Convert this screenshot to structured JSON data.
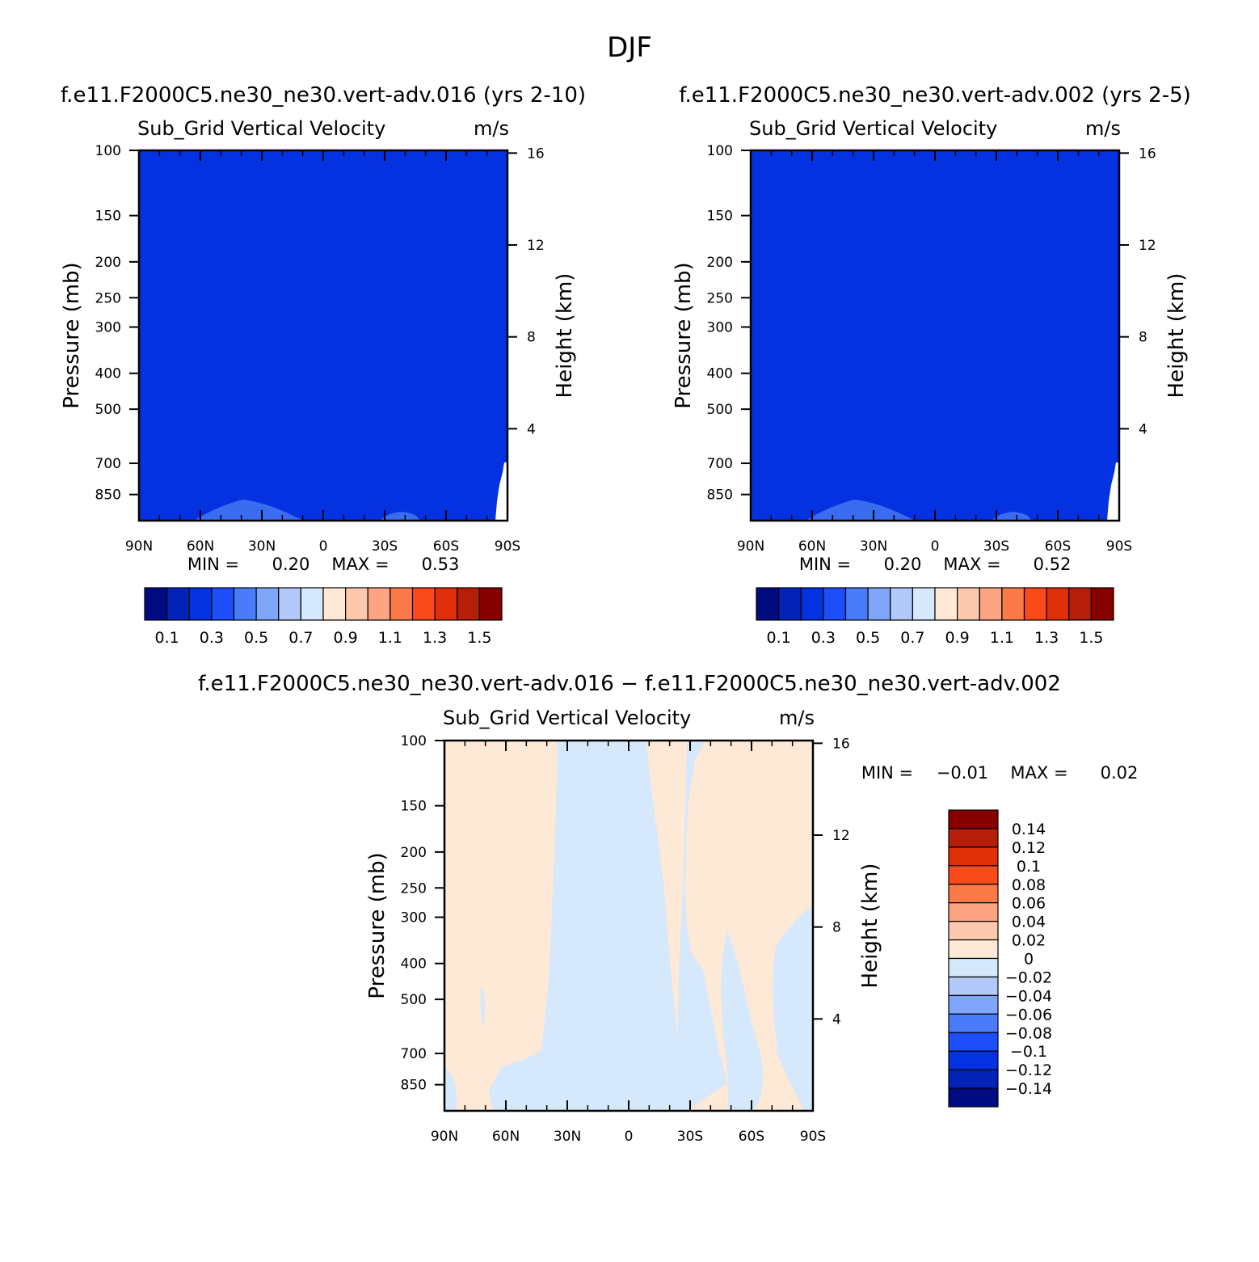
{
  "figure_title": "DJF",
  "colors": {
    "abs_fill": "#0432e0",
    "abs_light": "#3a6cf0",
    "diff_pos": "#fde9d6",
    "diff_neg": "#d6e8fb"
  },
  "abs_palette": [
    "#000b82",
    "#0322b8",
    "#0432e0",
    "#1e4dfa",
    "#4a7cfa",
    "#7fa6fa",
    "#b2c9fb",
    "#d6e8fb",
    "#fde9d6",
    "#fcc8ae",
    "#fca482",
    "#fa7a48",
    "#fa4a1a",
    "#e0300a",
    "#b51e08",
    "#870000"
  ],
  "diff_palette": [
    "#870000",
    "#b51e08",
    "#e0300a",
    "#fa4a1a",
    "#fa7a48",
    "#fca482",
    "#fcc8ae",
    "#fde9d6",
    "#d6e8fb",
    "#b2c9fb",
    "#7fa6fa",
    "#4a7cfa",
    "#1e4dfa",
    "#0432e0",
    "#0322b8",
    "#000b82"
  ],
  "chart_data": [
    {
      "type": "heatmap",
      "case_title": "f.e11.F2000C5.ne30_ne30.vert-adv.016 (yrs 2-10)",
      "variable": "Sub_Grid Vertical Velocity",
      "units": "m/s",
      "ylabel": "Pressure (mb)",
      "y2label": "Height (km)",
      "xlim": [
        90,
        -90
      ],
      "ylim": [
        100,
        1000
      ],
      "x_ticks": [
        "90N",
        "60N",
        "30N",
        "0",
        "30S",
        "60S",
        "90S"
      ],
      "y_ticks": [
        100,
        150,
        200,
        250,
        300,
        400,
        500,
        700,
        850
      ],
      "height_ticks": [
        16,
        12,
        8,
        4
      ],
      "min_label": "MIN =",
      "min_value": "0.20",
      "max_label": "MAX =",
      "max_value": "0.53",
      "colorbar_labels": [
        "0.1",
        "0.3",
        "0.5",
        "0.7",
        "0.9",
        "1.1",
        "1.3",
        "1.5"
      ]
    },
    {
      "type": "heatmap",
      "case_title": "f.e11.F2000C5.ne30_ne30.vert-adv.002 (yrs 2-5)",
      "variable": "Sub_Grid Vertical Velocity",
      "units": "m/s",
      "ylabel": "Pressure (mb)",
      "y2label": "Height (km)",
      "xlim": [
        90,
        -90
      ],
      "ylim": [
        100,
        1000
      ],
      "x_ticks": [
        "90N",
        "60N",
        "30N",
        "0",
        "30S",
        "60S",
        "90S"
      ],
      "y_ticks": [
        100,
        150,
        200,
        250,
        300,
        400,
        500,
        700,
        850
      ],
      "height_ticks": [
        16,
        12,
        8,
        4
      ],
      "min_label": "MIN =",
      "min_value": "0.20",
      "max_label": "MAX =",
      "max_value": "0.52",
      "colorbar_labels": [
        "0.1",
        "0.3",
        "0.5",
        "0.7",
        "0.9",
        "1.1",
        "1.3",
        "1.5"
      ]
    },
    {
      "type": "heatmap",
      "case_title": "f.e11.F2000C5.ne30_ne30.vert-adv.016 − f.e11.F2000C5.ne30_ne30.vert-adv.002",
      "variable": "Sub_Grid Vertical Velocity",
      "units": "m/s",
      "ylabel": "Pressure (mb)",
      "y2label": "Height (km)",
      "xlim": [
        90,
        -90
      ],
      "ylim": [
        100,
        1000
      ],
      "x_ticks": [
        "90N",
        "60N",
        "30N",
        "0",
        "30S",
        "60S",
        "90S"
      ],
      "y_ticks": [
        100,
        150,
        200,
        250,
        300,
        400,
        500,
        700,
        850
      ],
      "height_ticks": [
        16,
        12,
        8,
        4
      ],
      "min_label": "MIN =",
      "min_value": "−0.01",
      "max_label": "MAX =",
      "max_value": "0.02",
      "colorbar_labels": [
        "0.14",
        "0.12",
        "0.1",
        "0.08",
        "0.06",
        "0.04",
        "0.02",
        "0",
        "−0.02",
        "−0.04",
        "−0.06",
        "−0.08",
        "−0.1",
        "−0.12",
        "−0.14"
      ]
    }
  ]
}
